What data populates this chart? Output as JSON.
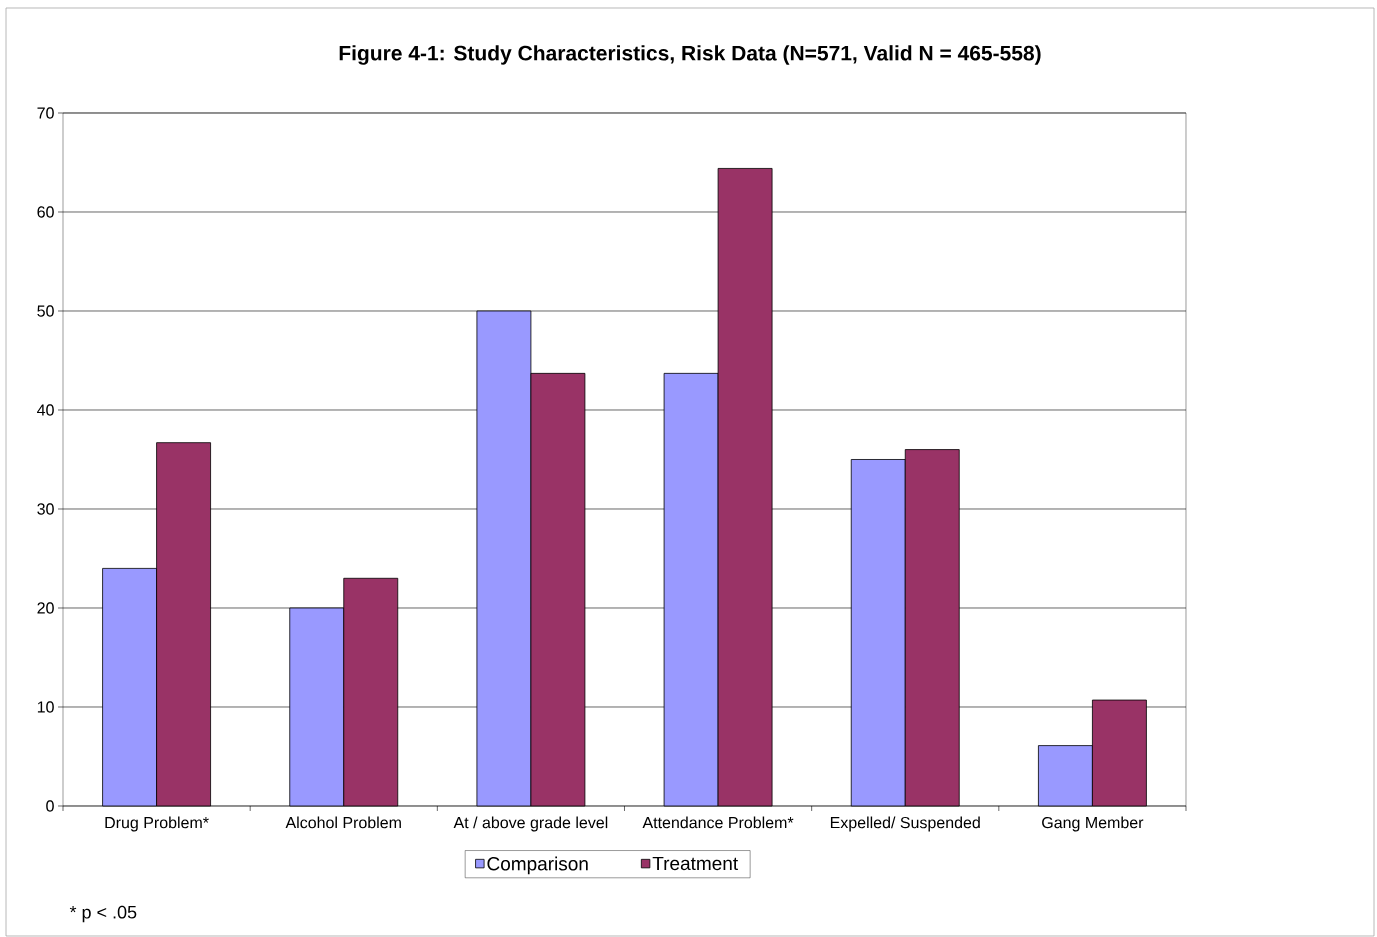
{
  "chart_data": {
    "type": "bar",
    "title": "Figure 4-1: Study Characteristics, Risk Data (N=571, Valid N = 465-558)",
    "categories": [
      "Drug Problem*",
      "Alcohol Problem",
      "At / above grade level",
      "Attendance Problem*",
      "Expelled/ Suspended",
      "Gang Member"
    ],
    "series": [
      {
        "name": "Comparison",
        "color": "#9999ff",
        "values": [
          24,
          20,
          50,
          43.7,
          35,
          6.1
        ]
      },
      {
        "name": "Treatment",
        "color": "#993366",
        "values": [
          36.7,
          23,
          43.7,
          64.4,
          36,
          10.7
        ]
      }
    ],
    "ylim": [
      0,
      70
    ],
    "yticks": [
      0,
      10,
      20,
      30,
      40,
      50,
      60,
      70
    ],
    "grid": "y",
    "legend": "bottom",
    "annotations": [
      "* p < .05"
    ]
  }
}
